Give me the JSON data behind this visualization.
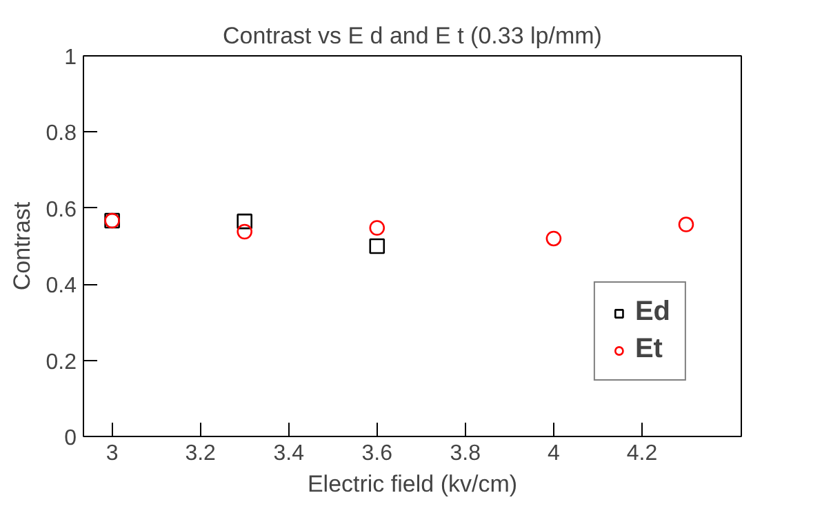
{
  "chart_data": {
    "type": "scatter",
    "title": "Contrast vs E d and E t (0.33 lp/mm)",
    "xlabel": "Electric field (kv/cm)",
    "ylabel": "Contrast",
    "series": [
      {
        "name": "Ed",
        "color": "#000000",
        "marker": "square",
        "x": [
          3,
          3.3,
          3.6
        ],
        "values": [
          0.567,
          0.565,
          0.5
        ]
      },
      {
        "name": "Et",
        "color": "#ff0000",
        "marker": "circle",
        "x": [
          3,
          3.3,
          3.6,
          4,
          4.3
        ],
        "values": [
          0.567,
          0.538,
          0.548,
          0.52,
          0.557
        ]
      }
    ],
    "xlim": [
      2.935,
      4.425
    ],
    "ylim": [
      0,
      1
    ],
    "xticks": [
      3,
      3.2,
      3.4,
      3.6,
      3.8,
      4,
      4.2
    ],
    "yticks": [
      0,
      0.2,
      0.4,
      0.6,
      0.8,
      1
    ],
    "grid": false,
    "legend": "bottom right"
  }
}
